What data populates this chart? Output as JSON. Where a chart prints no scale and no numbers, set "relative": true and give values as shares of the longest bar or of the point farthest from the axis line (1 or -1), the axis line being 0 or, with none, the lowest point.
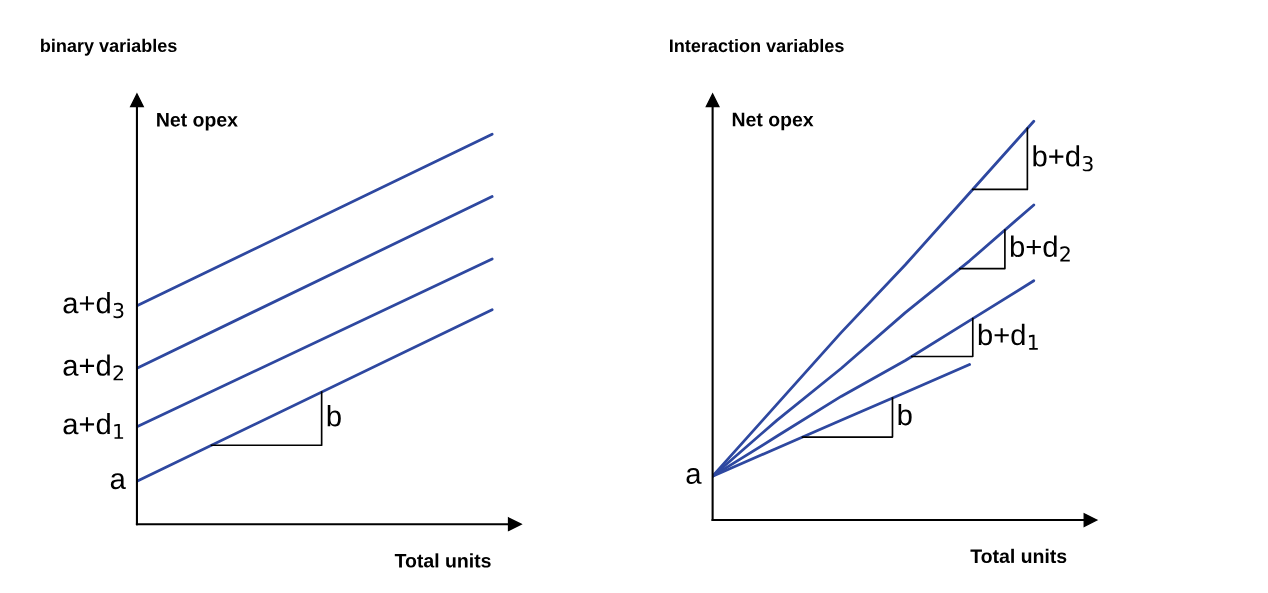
{
  "chart_data": [
    {
      "type": "line",
      "title": "binary variables",
      "xlabel": "Total units",
      "ylabel": "Net opex",
      "relative": true,
      "categories": [
        null,
        null
      ],
      "series": [
        {
          "color": "#2e48a0",
          "values": [
            0.11,
            0.55
          ]
        },
        {
          "color": "#2e48a0",
          "values": [
            0.25,
            0.68
          ]
        },
        {
          "color": "#2e48a0",
          "values": [
            0.4,
            0.84
          ]
        },
        {
          "color": "#2e48a0",
          "values": [
            0.56,
            1.0
          ]
        }
      ],
      "annotations": [
        "a",
        "a+d$_{1}$",
        "a+d$_{2}$",
        "a+d$_{3}$",
        "b"
      ]
    },
    {
      "type": "line",
      "title": "Interaction variables",
      "xlabel": "Total units",
      "ylabel": "Net opex",
      "relative": true,
      "categories": [
        null,
        null,
        null,
        null,
        null,
        null
      ],
      "series": [
        {
          "color": "#2e48a0",
          "values": [
            0.11,
            0.18,
            0.25,
            0.32,
            0.39,
            null
          ]
        },
        {
          "color": "#2e48a0",
          "values": [
            0.11,
            0.21,
            0.31,
            0.4,
            0.5,
            0.6
          ]
        },
        {
          "color": "#2e48a0",
          "values": [
            0.11,
            0.25,
            0.38,
            0.52,
            0.65,
            0.79
          ]
        },
        {
          "color": "#2e48a0",
          "values": [
            0.11,
            0.29,
            0.47,
            0.64,
            0.82,
            1.0
          ]
        }
      ],
      "annotations": [
        "a",
        "b",
        "b+d$_{1}$",
        "b+d$_{2}$",
        "b+d$_{3}$"
      ]
    }
  ]
}
